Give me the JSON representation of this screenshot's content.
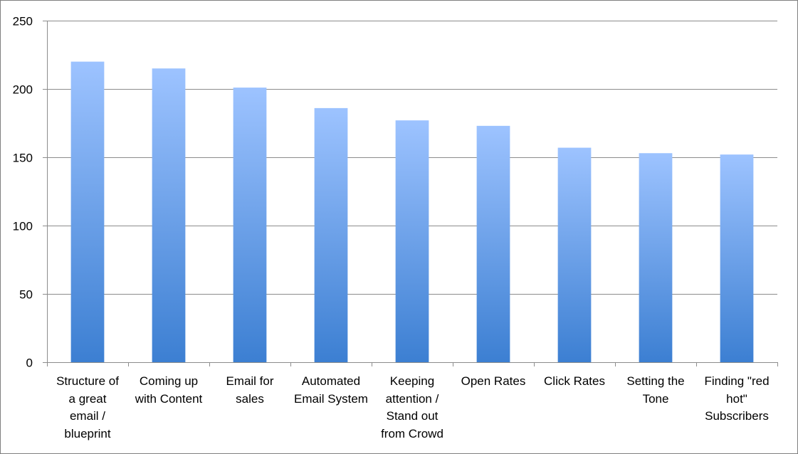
{
  "chart_data": {
    "type": "bar",
    "categories": [
      "Structure of\na great\nemail /\nblueprint",
      "Coming up\nwith Content",
      "Email for\nsales",
      "Automated\nEmail System",
      "Keeping\nattention /\nStand out\nfrom Crowd",
      "Open Rates",
      "Click Rates",
      "Setting the\nTone",
      "Finding \"red\nhot\"\nSubscribers"
    ],
    "values": [
      220,
      215,
      201,
      186,
      177,
      173,
      157,
      153,
      152
    ],
    "ylim": [
      0,
      250
    ],
    "yticks": [
      0,
      50,
      100,
      150,
      200,
      250
    ],
    "title": "",
    "xlabel": "",
    "ylabel": "",
    "grid": true,
    "legend": "none",
    "colors": {
      "bar_top": "#9DC3FF",
      "bar_bottom": "#3C7FD2",
      "grid": "#8C8C8C",
      "axis": "#8C8C8C",
      "border": "#7F7F7F"
    }
  }
}
